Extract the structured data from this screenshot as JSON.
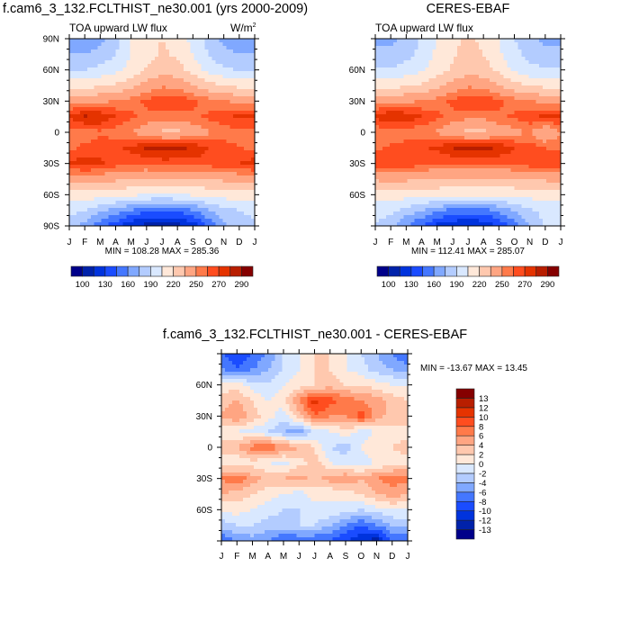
{
  "panels": [
    {
      "title": "f.cam6_3_132.FCLTHIST_ne30.001 (yrs 2000-2009)",
      "left_label": "TOA upward LW flux",
      "units_base": "W/m",
      "units_sup": "2",
      "stats": "MIN = 108.28 MAX = 285.36"
    },
    {
      "title": "CERES-EBAF",
      "left_label": "TOA upward LW flux",
      "stats": "MIN = 112.41 MAX = 285.07"
    },
    {
      "title": "f.cam6_3_132.FCLTHIST_ne30.001 - CERES-EBAF",
      "stats": "MIN = -13.67 MAX =  13.45"
    }
  ],
  "chart_data": [
    {
      "type": "heatmap",
      "x_tick_labels": [
        "J",
        "F",
        "M",
        "A",
        "M",
        "J",
        "J",
        "A",
        "S",
        "O",
        "N",
        "D",
        "J"
      ],
      "y": [
        90,
        75,
        60,
        45,
        30,
        15,
        0,
        -15,
        -30,
        -45,
        -60,
        -75,
        -90
      ],
      "y_ticks": [
        90,
        60,
        30,
        0,
        -30,
        -60,
        -90
      ],
      "y_tick_labels": [
        "90N",
        "60N",
        "30N",
        "0",
        "30S",
        "60S",
        "90S"
      ],
      "ylim": [
        -90,
        90
      ],
      "values": [
        [
          165,
          165,
          170,
          185,
          205,
          215,
          220,
          215,
          200,
          185,
          170,
          165,
          165
        ],
        [
          175,
          175,
          180,
          190,
          205,
          215,
          222,
          218,
          205,
          190,
          180,
          175,
          175
        ],
        [
          190,
          190,
          195,
          200,
          210,
          222,
          230,
          225,
          215,
          200,
          192,
          190,
          190
        ],
        [
          215,
          215,
          218,
          222,
          230,
          240,
          248,
          245,
          235,
          225,
          220,
          215,
          215
        ],
        [
          245,
          245,
          248,
          250,
          255,
          262,
          268,
          268,
          262,
          255,
          250,
          248,
          245
        ],
        [
          272,
          282,
          279,
          270,
          262,
          258,
          255,
          255,
          258,
          262,
          268,
          272,
          272
        ],
        [
          255,
          255,
          258,
          255,
          250,
          240,
          232,
          232,
          240,
          248,
          255,
          255,
          255
        ],
        [
          258,
          262,
          265,
          268,
          273,
          281,
          284,
          283,
          279,
          270,
          265,
          260,
          258
        ],
        [
          272,
          276,
          272,
          265,
          262,
          263,
          265,
          265,
          265,
          265,
          268,
          270,
          276
        ],
        [
          240,
          240,
          240,
          238,
          235,
          232,
          232,
          232,
          232,
          235,
          238,
          240,
          240
        ],
        [
          215,
          215,
          212,
          210,
          208,
          205,
          205,
          205,
          207,
          210,
          212,
          215,
          215
        ],
        [
          195,
          190,
          180,
          170,
          160,
          150,
          148,
          150,
          160,
          175,
          185,
          190,
          195
        ],
        [
          185,
          170,
          150,
          135,
          115,
          110,
          110,
          110,
          120,
          145,
          170,
          185,
          185
        ]
      ],
      "colorbar": {
        "orientation": "horizontal",
        "labels": [
          "100",
          "130",
          "160",
          "190",
          "220",
          "250",
          "270",
          "290"
        ],
        "colors": [
          "#00008a",
          "#0022aa",
          "#0033dd",
          "#1a4cff",
          "#4477ff",
          "#80a8ff",
          "#b3ccff",
          "#d9e8ff",
          "#ffe8d9",
          "#ffc8ae",
          "#ffa582",
          "#ff7a4a",
          "#ff4d1f",
          "#e53300",
          "#b81e00",
          "#850000"
        ]
      }
    },
    {
      "type": "heatmap",
      "x_tick_labels": [
        "J",
        "F",
        "M",
        "A",
        "M",
        "J",
        "J",
        "A",
        "S",
        "O",
        "N",
        "D",
        "J"
      ],
      "y": [
        90,
        75,
        60,
        45,
        30,
        15,
        0,
        -15,
        -30,
        -45,
        -60,
        -75,
        -90
      ],
      "y_ticks": [
        90,
        60,
        30,
        0,
        -30,
        -60,
        -90
      ],
      "y_tick_labels": [
        "",
        "60N",
        "30N",
        "0",
        "30S",
        "60S",
        ""
      ],
      "ylim": [
        -90,
        90
      ],
      "values": [
        [
          172,
          172,
          178,
          192,
          207,
          218,
          222,
          218,
          205,
          190,
          178,
          172,
          172
        ],
        [
          180,
          180,
          185,
          195,
          208,
          218,
          224,
          220,
          208,
          195,
          185,
          180,
          180
        ],
        [
          192,
          192,
          196,
          202,
          212,
          222,
          230,
          226,
          216,
          202,
          194,
          192,
          192
        ],
        [
          215,
          215,
          218,
          222,
          230,
          240,
          248,
          245,
          236,
          225,
          220,
          215,
          215
        ],
        [
          245,
          245,
          248,
          250,
          255,
          262,
          268,
          268,
          262,
          255,
          250,
          248,
          245
        ],
        [
          272,
          281,
          278,
          270,
          262,
          258,
          254,
          254,
          258,
          262,
          268,
          272,
          272
        ],
        [
          252,
          252,
          255,
          252,
          248,
          238,
          230,
          230,
          240,
          246,
          250,
          235,
          250
        ],
        [
          258,
          262,
          265,
          268,
          273,
          281,
          284,
          283,
          279,
          270,
          265,
          260,
          258
        ],
        [
          268,
          270,
          268,
          262,
          260,
          260,
          263,
          262,
          262,
          262,
          266,
          268,
          270
        ],
        [
          238,
          238,
          238,
          236,
          234,
          232,
          232,
          232,
          232,
          234,
          236,
          238,
          238
        ],
        [
          212,
          212,
          212,
          211,
          210,
          209,
          209,
          209,
          209,
          210,
          211,
          212,
          212
        ],
        [
          198,
          195,
          185,
          175,
          165,
          155,
          152,
          155,
          165,
          178,
          188,
          195,
          198
        ],
        [
          190,
          178,
          160,
          145,
          125,
          118,
          115,
          118,
          130,
          150,
          175,
          190,
          190
        ]
      ],
      "colorbar": {
        "orientation": "horizontal",
        "labels": [
          "100",
          "130",
          "160",
          "190",
          "220",
          "250",
          "270",
          "290"
        ],
        "colors": [
          "#00008a",
          "#0022aa",
          "#0033dd",
          "#1a4cff",
          "#4477ff",
          "#80a8ff",
          "#b3ccff",
          "#d9e8ff",
          "#ffe8d9",
          "#ffc8ae",
          "#ffa582",
          "#ff7a4a",
          "#ff4d1f",
          "#e53300",
          "#b81e00",
          "#850000"
        ]
      }
    },
    {
      "type": "heatmap",
      "x_tick_labels": [
        "J",
        "F",
        "M",
        "A",
        "M",
        "J",
        "J",
        "A",
        "S",
        "O",
        "N",
        "D",
        "J"
      ],
      "y": [
        90,
        75,
        60,
        45,
        30,
        15,
        0,
        -15,
        -30,
        -45,
        -60,
        -75,
        -90
      ],
      "y_ticks": [
        90,
        60,
        30,
        0,
        -30,
        -60,
        -90
      ],
      "y_tick_labels": [
        "",
        "60N",
        "30N",
        "0",
        "30S",
        "60S",
        ""
      ],
      "ylim": [
        -90,
        90
      ],
      "values": [
        [
          -8,
          -10,
          -8,
          -6,
          -2,
          0,
          2,
          2,
          0,
          -2,
          -4,
          -6,
          -8
        ],
        [
          -6,
          -8,
          -6,
          -4,
          -2,
          0,
          2,
          2,
          0,
          -1,
          -3,
          -4,
          -5
        ],
        [
          1,
          1,
          -1,
          -2,
          0,
          1,
          2,
          3,
          2,
          2,
          1,
          0,
          0
        ],
        [
          3,
          4,
          2,
          0,
          1,
          6,
          11,
          9,
          7,
          6,
          5,
          3,
          2
        ],
        [
          4,
          6,
          3,
          1,
          -1,
          3,
          8,
          6,
          6,
          9,
          5,
          3,
          3
        ],
        [
          1,
          0,
          -1,
          -2,
          -4,
          -5,
          -2,
          0,
          1,
          -1,
          0,
          1,
          1
        ],
        [
          3,
          4,
          7,
          8,
          6,
          4,
          2,
          -2,
          -3,
          0,
          2,
          2,
          3
        ],
        [
          1,
          0,
          1,
          0,
          -1,
          1,
          3,
          0,
          -1,
          -1,
          0,
          1,
          1
        ],
        [
          6,
          8,
          5,
          3,
          4,
          5,
          3,
          5,
          6,
          4,
          6,
          7,
          7
        ],
        [
          4,
          3,
          2,
          1,
          0,
          -1,
          1,
          0,
          1,
          2,
          4,
          5,
          4
        ],
        [
          0,
          1,
          0,
          -1,
          -2,
          -2,
          -1,
          0,
          -1,
          -2,
          -1,
          0,
          0
        ],
        [
          -3,
          -2,
          -2,
          -3,
          -3,
          -2,
          -2,
          -4,
          -6,
          -8,
          -6,
          -4,
          -3
        ],
        [
          -8,
          -6,
          -5,
          -6,
          -8,
          -8,
          -8,
          -8,
          -10,
          -12,
          -13,
          -8,
          -8
        ]
      ],
      "colorbar": {
        "orientation": "vertical",
        "labels": [
          "-13",
          "-12",
          "-10",
          "-8",
          "-6",
          "-4",
          "-2",
          "0",
          "2",
          "4",
          "6",
          "8",
          "10",
          "12",
          "13"
        ],
        "colors": [
          "#00008a",
          "#0022aa",
          "#0033dd",
          "#1a4cff",
          "#4477ff",
          "#80a8ff",
          "#b3ccff",
          "#d9e8ff",
          "#ffe8d9",
          "#ffc8ae",
          "#ffa582",
          "#ff7a4a",
          "#ff4d1f",
          "#e53300",
          "#b81e00",
          "#850000"
        ]
      }
    }
  ]
}
